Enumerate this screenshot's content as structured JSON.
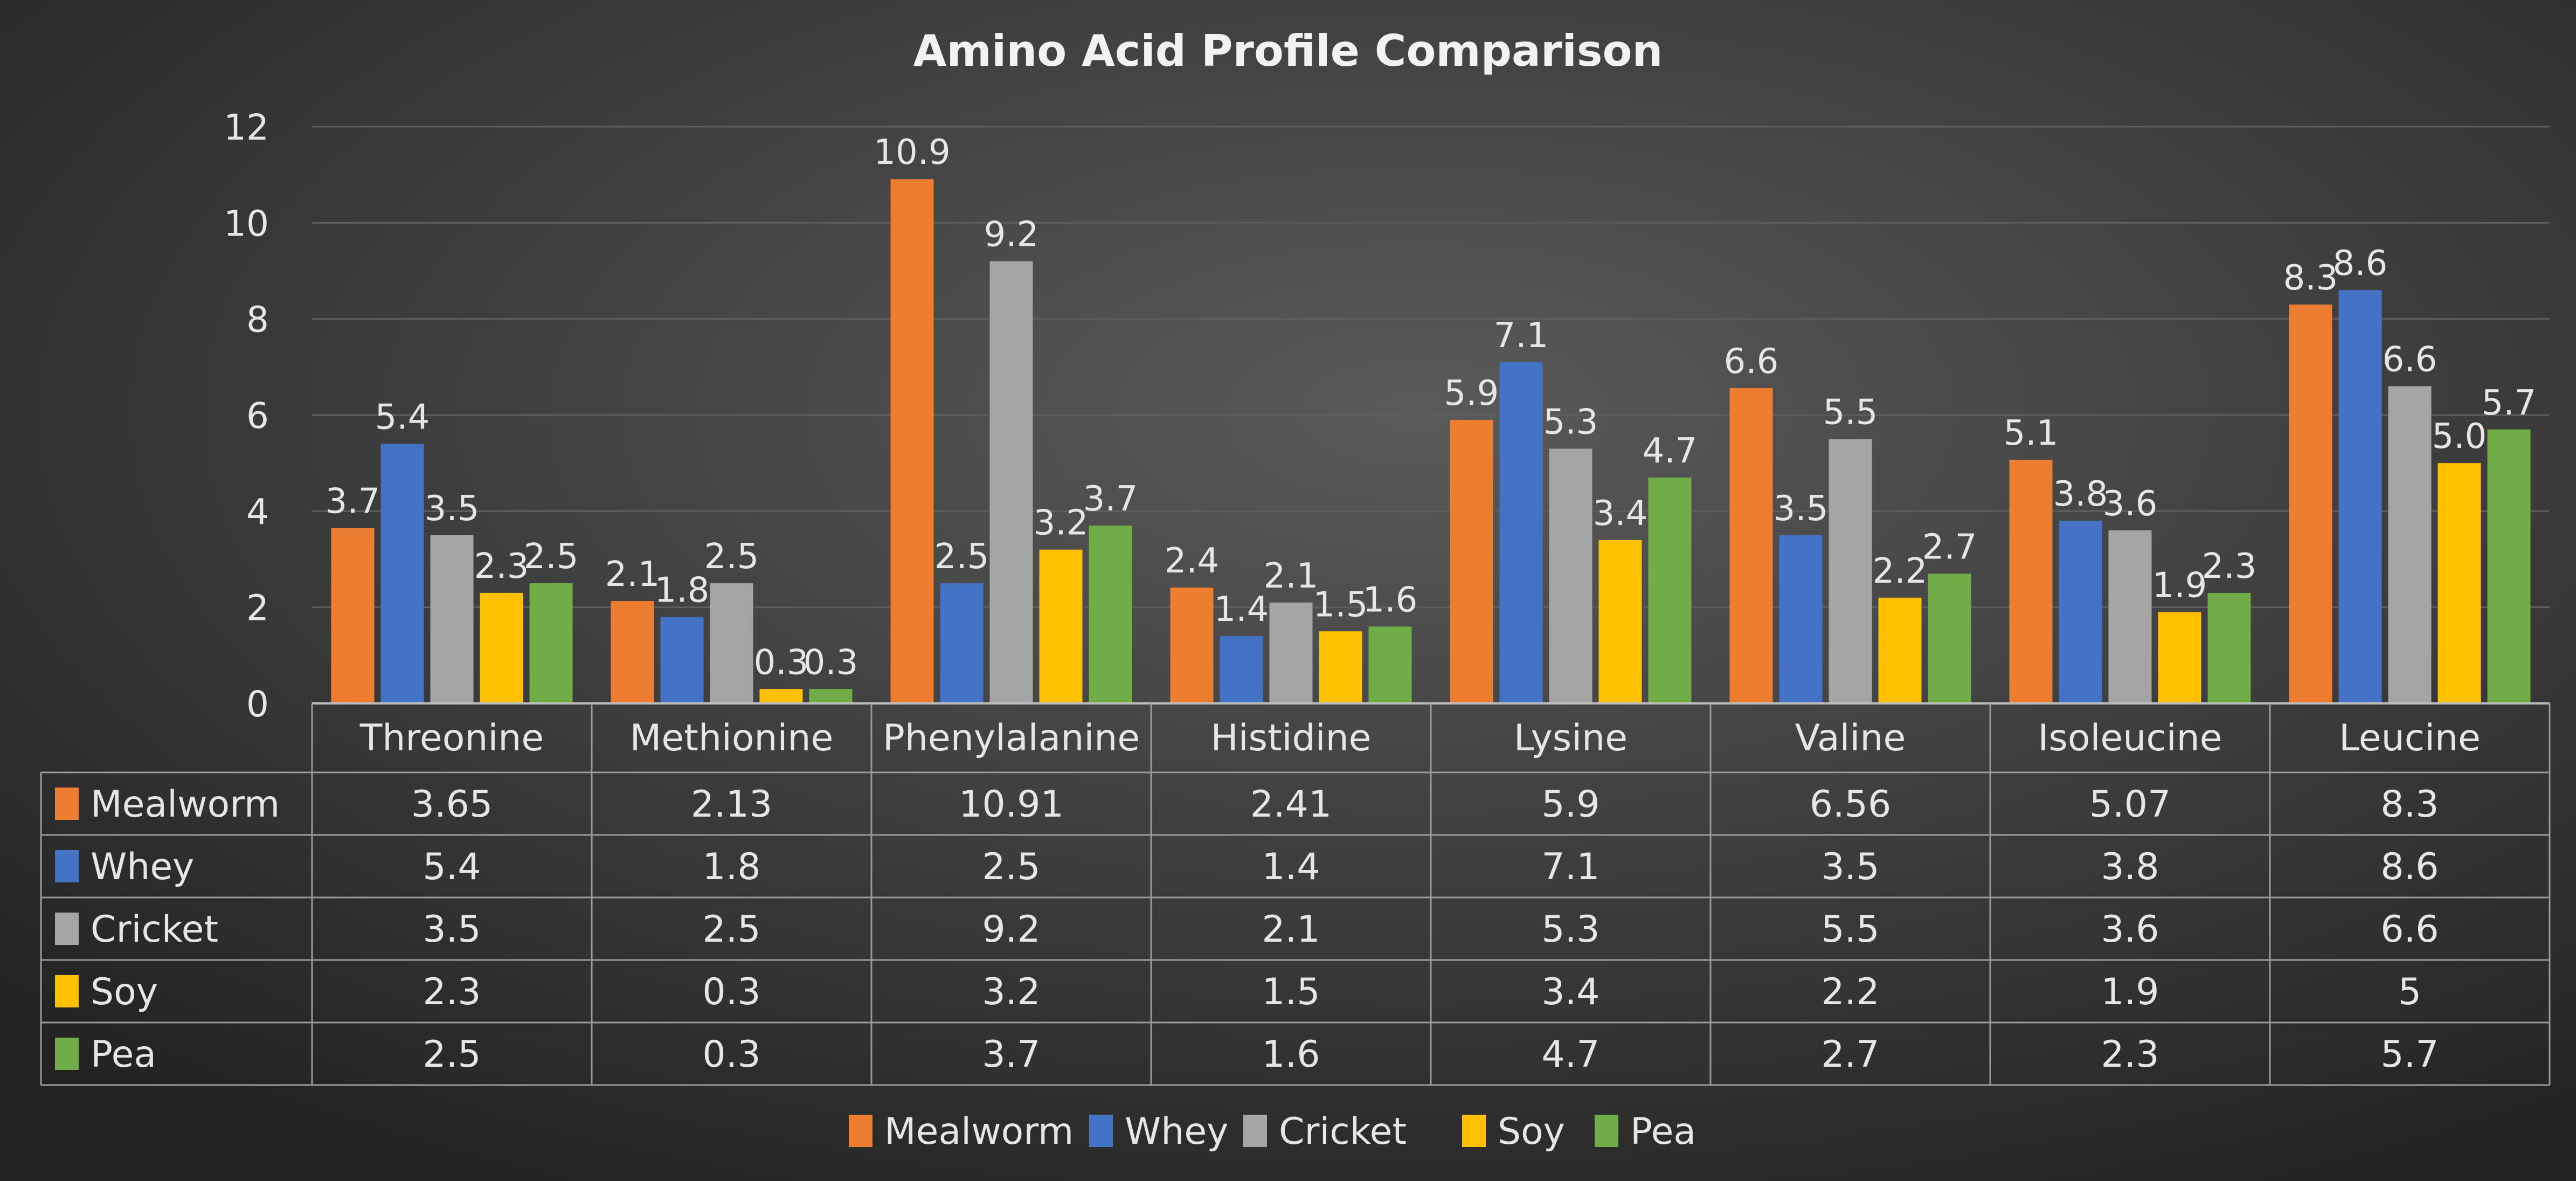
{
  "chart_data": {
    "type": "bar",
    "title": "Amino Acid Profile Comparison",
    "xlabel": "",
    "ylabel": "",
    "ylim": [
      0,
      12
    ],
    "yticks": [
      0,
      2,
      4,
      6,
      8,
      10,
      12
    ],
    "grid": true,
    "legend_position": "bottom",
    "data_table": true,
    "categories": [
      "Threonine",
      "Methionine",
      "Phenylalanine",
      "Histidine",
      "Lysine",
      "Valine",
      "Isoleucine",
      "Leucine"
    ],
    "series": [
      {
        "name": "Mealworm",
        "color": "#ED7D31",
        "values": [
          3.65,
          2.13,
          10.91,
          2.41,
          5.9,
          6.56,
          5.07,
          8.3
        ],
        "table_values": [
          "3.65",
          "2.13",
          "10.91",
          "2.41",
          "5.9",
          "6.56",
          "5.07",
          "8.3"
        ],
        "labels": [
          "3.7",
          "2.1",
          "10.9",
          "2.4",
          "5.9",
          "6.6",
          "5.1",
          "8.3"
        ]
      },
      {
        "name": "Whey",
        "color": "#4472C4",
        "values": [
          5.4,
          1.8,
          2.5,
          1.4,
          7.1,
          3.5,
          3.8,
          8.6
        ],
        "table_values": [
          "5.4",
          "1.8",
          "2.5",
          "1.4",
          "7.1",
          "3.5",
          "3.8",
          "8.6"
        ],
        "labels": [
          "5.4",
          "1.8",
          "2.5",
          "1.4",
          "7.1",
          "3.5",
          "3.8",
          "8.6"
        ]
      },
      {
        "name": "Cricket",
        "color": "#A5A5A5",
        "values": [
          3.5,
          2.5,
          9.2,
          2.1,
          5.3,
          5.5,
          3.6,
          6.6
        ],
        "table_values": [
          "3.5",
          "2.5",
          "9.2",
          "2.1",
          "5.3",
          "5.5",
          "3.6",
          "6.6"
        ],
        "labels": [
          "3.5",
          "2.5",
          "9.2",
          "2.1",
          "5.3",
          "5.5",
          "3.6",
          "6.6"
        ]
      },
      {
        "name": "Soy",
        "color": "#FFC000",
        "values": [
          2.3,
          0.3,
          3.2,
          1.5,
          3.4,
          2.2,
          1.9,
          5.0
        ],
        "table_values": [
          "2.3",
          "0.3",
          "3.2",
          "1.5",
          "3.4",
          "2.2",
          "1.9",
          "5"
        ],
        "labels": [
          "2.3",
          "0.3",
          "3.2",
          "1.5",
          "3.4",
          "2.2",
          "1.9",
          "5.0"
        ]
      },
      {
        "name": "Pea",
        "color": "#70AD47",
        "values": [
          2.5,
          0.3,
          3.7,
          1.6,
          4.7,
          2.7,
          2.3,
          5.7
        ],
        "table_values": [
          "2.5",
          "0.3",
          "3.7",
          "1.6",
          "4.7",
          "2.7",
          "2.3",
          "5.7"
        ],
        "labels": [
          "2.5",
          "0.3",
          "3.7",
          "1.6",
          "4.7",
          "2.7",
          "2.3",
          "5.7"
        ]
      }
    ]
  }
}
